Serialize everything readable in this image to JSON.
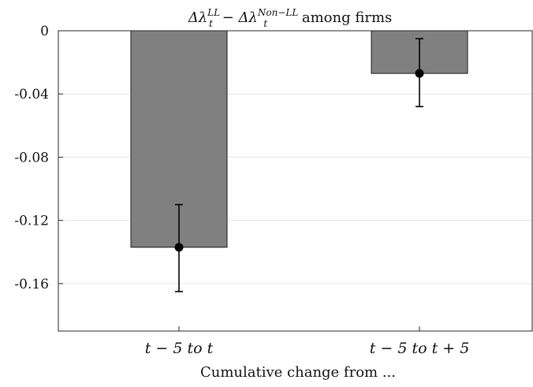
{
  "chart_data": {
    "type": "bar",
    "title": {
      "delta1": "Δλ",
      "sup1": "LL",
      "sub1": "t",
      "minus": " − ",
      "delta2": "Δλ",
      "sup2": "Non−LL",
      "sub2": "t",
      "suffix": " among firms"
    },
    "xlabel": "Cumulative change from ...",
    "ylabel": "",
    "categories": [
      "t − 5  to  t",
      "t − 5  to  t + 5"
    ],
    "values": [
      -0.137,
      -0.027
    ],
    "error_low": [
      -0.165,
      -0.048
    ],
    "error_high": [
      -0.11,
      -0.005
    ],
    "ylim": [
      -0.19,
      0
    ],
    "yticks": [
      0,
      -0.04,
      -0.08,
      -0.12,
      -0.16
    ],
    "ytick_labels": [
      "0",
      "-0.04",
      "-0.08",
      "-0.12",
      "-0.16"
    ],
    "grid": true,
    "bar_color": "#808080",
    "marker_color": "#000000"
  }
}
